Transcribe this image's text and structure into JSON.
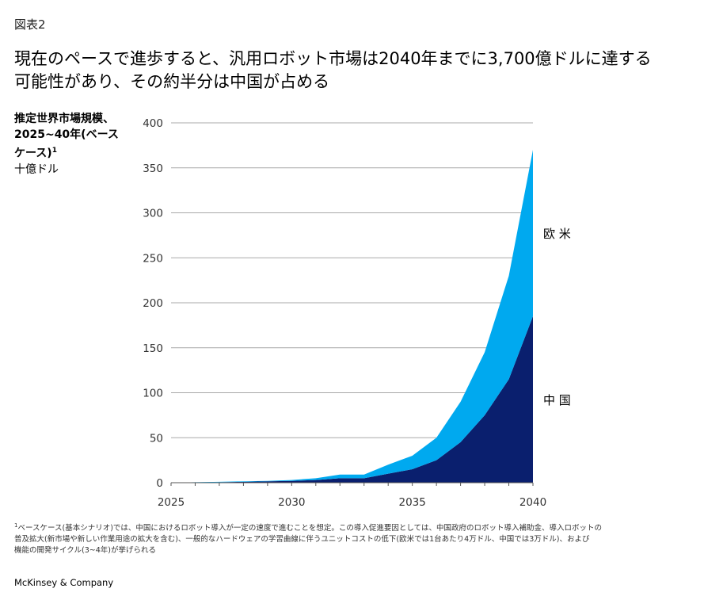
{
  "exhibit": "図表2",
  "title_line1": "現在のペースで進歩すると、汎用ロボット市場は2040年までに3,700億ドルに達する",
  "title_line2": "可能性があり、その約半分は中国が占める",
  "chart_data": {
    "type": "area",
    "stacked": true,
    "ylabel_bold_line1": "推定世界市場規模、",
    "ylabel_bold_line2": "2025~40年(ベース",
    "ylabel_bold_line3": "ケース)",
    "ylabel_footnote_mark": "1",
    "ylabel_unit": "十億ドル",
    "xlim": [
      2025,
      2040
    ],
    "ylim": [
      0,
      400
    ],
    "yticks": [
      "0",
      "50",
      "100",
      "150",
      "200",
      "250",
      "300",
      "350",
      "400"
    ],
    "xticks": [
      "2025",
      "2030",
      "2035",
      "2040"
    ],
    "grid": true,
    "x": [
      2025,
      2026,
      2027,
      2028,
      2029,
      2030,
      2031,
      2032,
      2033,
      2034,
      2035,
      2036,
      2037,
      2038,
      2039,
      2040
    ],
    "series": [
      {
        "name": "中 国",
        "color": "#0a1f6e",
        "values": [
          0,
          0.3,
          0.6,
          1,
          1.5,
          2,
          3,
          5,
          5,
          10,
          15,
          25,
          45,
          75,
          115,
          185
        ]
      },
      {
        "name": "欧 米",
        "color": "#00a9ef",
        "values": [
          0,
          0.2,
          0.4,
          0.5,
          0.5,
          1,
          2,
          4,
          4,
          10,
          15,
          25,
          45,
          70,
          115,
          185
        ]
      }
    ]
  },
  "footnote": {
    "mark": "1",
    "line1": "ベースケース(基本シナリオ)では、中国におけるロボット導入が一定の速度で進むことを想定。この導入促進要因としては、中国政府のロボット導入補助金、導入ロボットの",
    "line2": "普及拡大(新市場や新しい作業用途の拡大を含む)、一般的なハードウェアの学習曲線に伴うユニットコストの低下(欧米では1台あたり4万ドル、中国では3万ドル)、および",
    "line3": "機能の開発サイクル(3~4年)が挙げられる"
  },
  "brand": "McKinsey & Company"
}
